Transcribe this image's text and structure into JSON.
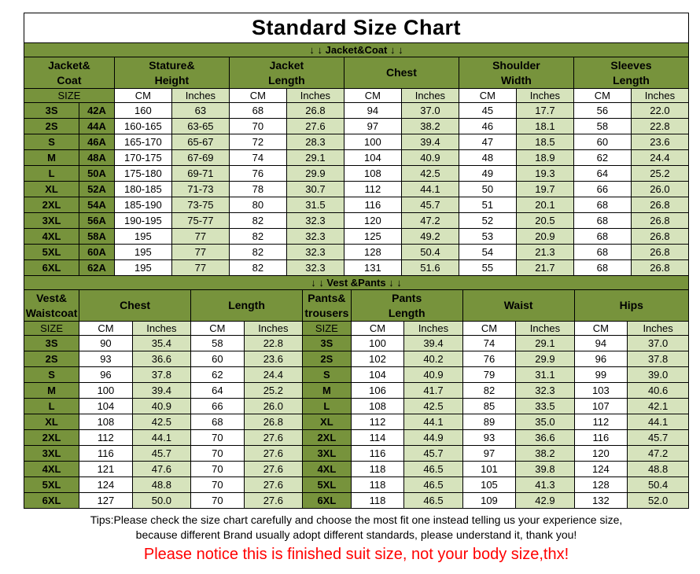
{
  "page": {
    "title": "Standard Size Chart",
    "footer": {
      "tips_line1": "Tips:Please check the size chart carefully and choose the most fit one instead telling us your experience size,",
      "tips_line2": "because different Brand usually adopt different standards, please understand it, thank you!",
      "notice": "Please notice this is finished suit size, not your body size,thx!"
    },
    "colors": {
      "header_green": "#77933c",
      "row_light_green": "#d6e3bc",
      "notice_red": "#ff0000"
    }
  },
  "jacket_table": {
    "divider": "↓ ↓ Jacket&Coat ↓ ↓",
    "col_groups": [
      "Jacket&\nCoat",
      "Stature&\nHeight",
      "Jacket\nLength",
      "Chest",
      "Shoulder\nWidth",
      "Sleeves\nLength"
    ],
    "subheader": [
      "SIZE",
      "CM",
      "Inches",
      "CM",
      "Inches",
      "CM",
      "Inches",
      "CM",
      "Inches",
      "CM",
      "Inches"
    ],
    "rows": [
      [
        "3S",
        "42A",
        "160",
        "63",
        "68",
        "26.8",
        "94",
        "37.0",
        "45",
        "17.7",
        "56",
        "22.0"
      ],
      [
        "2S",
        "44A",
        "160-165",
        "63-65",
        "70",
        "27.6",
        "97",
        "38.2",
        "46",
        "18.1",
        "58",
        "22.8"
      ],
      [
        "S",
        "46A",
        "165-170",
        "65-67",
        "72",
        "28.3",
        "100",
        "39.4",
        "47",
        "18.5",
        "60",
        "23.6"
      ],
      [
        "M",
        "48A",
        "170-175",
        "67-69",
        "74",
        "29.1",
        "104",
        "40.9",
        "48",
        "18.9",
        "62",
        "24.4"
      ],
      [
        "L",
        "50A",
        "175-180",
        "69-71",
        "76",
        "29.9",
        "108",
        "42.5",
        "49",
        "19.3",
        "64",
        "25.2"
      ],
      [
        "XL",
        "52A",
        "180-185",
        "71-73",
        "78",
        "30.7",
        "112",
        "44.1",
        "50",
        "19.7",
        "66",
        "26.0"
      ],
      [
        "2XL",
        "54A",
        "185-190",
        "73-75",
        "80",
        "31.5",
        "116",
        "45.7",
        "51",
        "20.1",
        "68",
        "26.8"
      ],
      [
        "3XL",
        "56A",
        "190-195",
        "75-77",
        "82",
        "32.3",
        "120",
        "47.2",
        "52",
        "20.5",
        "68",
        "26.8"
      ],
      [
        "4XL",
        "58A",
        "195",
        "77",
        "82",
        "32.3",
        "125",
        "49.2",
        "53",
        "20.9",
        "68",
        "26.8"
      ],
      [
        "5XL",
        "60A",
        "195",
        "77",
        "82",
        "32.3",
        "128",
        "50.4",
        "54",
        "21.3",
        "68",
        "26.8"
      ],
      [
        "6XL",
        "62A",
        "195",
        "77",
        "82",
        "32.3",
        "131",
        "51.6",
        "55",
        "21.7",
        "68",
        "26.8"
      ]
    ]
  },
  "vest_table": {
    "divider": "↓ ↓ Vest &Pants ↓ ↓",
    "col_groups": [
      "Vest&\nWaistcoat",
      "Chest",
      "Length",
      "Pants&\ntrousers",
      "Pants\nLength",
      "Waist",
      "Hips"
    ],
    "subheader": [
      "SIZE",
      "CM",
      "Inches",
      "CM",
      "Inches",
      "SIZE",
      "CM",
      "Inches",
      "CM",
      "Inches",
      "CM",
      "Inches"
    ],
    "rows": [
      [
        "3S",
        "90",
        "35.4",
        "58",
        "22.8",
        "3S",
        "100",
        "39.4",
        "74",
        "29.1",
        "94",
        "37.0"
      ],
      [
        "2S",
        "93",
        "36.6",
        "60",
        "23.6",
        "2S",
        "102",
        "40.2",
        "76",
        "29.9",
        "96",
        "37.8"
      ],
      [
        "S",
        "96",
        "37.8",
        "62",
        "24.4",
        "S",
        "104",
        "40.9",
        "79",
        "31.1",
        "99",
        "39.0"
      ],
      [
        "M",
        "100",
        "39.4",
        "64",
        "25.2",
        "M",
        "106",
        "41.7",
        "82",
        "32.3",
        "103",
        "40.6"
      ],
      [
        "L",
        "104",
        "40.9",
        "66",
        "26.0",
        "L",
        "108",
        "42.5",
        "85",
        "33.5",
        "107",
        "42.1"
      ],
      [
        "XL",
        "108",
        "42.5",
        "68",
        "26.8",
        "XL",
        "112",
        "44.1",
        "89",
        "35.0",
        "112",
        "44.1"
      ],
      [
        "2XL",
        "112",
        "44.1",
        "70",
        "27.6",
        "2XL",
        "114",
        "44.9",
        "93",
        "36.6",
        "116",
        "45.7"
      ],
      [
        "3XL",
        "116",
        "45.7",
        "70",
        "27.6",
        "3XL",
        "116",
        "45.7",
        "97",
        "38.2",
        "120",
        "47.2"
      ],
      [
        "4XL",
        "121",
        "47.6",
        "70",
        "27.6",
        "4XL",
        "118",
        "46.5",
        "101",
        "39.8",
        "124",
        "48.8"
      ],
      [
        "5XL",
        "124",
        "48.8",
        "70",
        "27.6",
        "5XL",
        "118",
        "46.5",
        "105",
        "41.3",
        "128",
        "50.4"
      ],
      [
        "6XL",
        "127",
        "50.0",
        "70",
        "27.6",
        "6XL",
        "118",
        "46.5",
        "109",
        "42.9",
        "132",
        "52.0"
      ]
    ]
  }
}
